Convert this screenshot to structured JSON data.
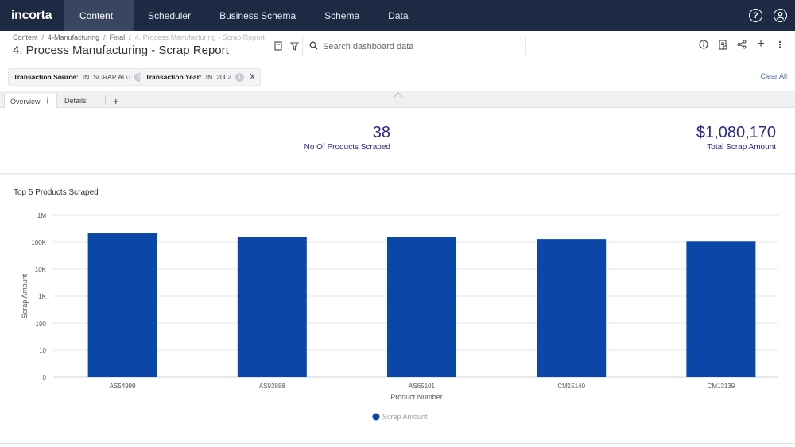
{
  "nav": {
    "logo": "incorta",
    "tabs": [
      "Content",
      "Scheduler",
      "Business Schema",
      "Schema",
      "Data"
    ],
    "active_tab": "Content"
  },
  "breadcrumb": [
    "Content",
    "4-Manufacturing",
    "Final",
    "4. Process Manufacturing - Scrap Report"
  ],
  "page_title": "4. Process Manufacturing - Scrap Report",
  "search": {
    "placeholder": "Search dashboard data"
  },
  "filters": [
    {
      "name": "Transaction Source:",
      "op": "IN",
      "value": "SCRAP ADJ",
      "badge": "i",
      "remove": "X"
    },
    {
      "name": "Transaction Year:",
      "op": "IN",
      "value": "2002",
      "badge": "i",
      "remove": "X"
    }
  ],
  "clear_all": "Clear All",
  "dashboard_tabs": [
    "Overview",
    "Details"
  ],
  "add_tab": "+",
  "kpis": [
    {
      "value": "38",
      "label": "No Of Products Scraped"
    },
    {
      "value": "$1,080,170",
      "label": "Total Scrap Amount"
    }
  ],
  "colors": {
    "nav_bg": "#1e2a44",
    "bar": "#0a47a8",
    "kpi_text": "#2a2a8a"
  },
  "chart_data": {
    "type": "bar",
    "title": "Top 5 Products Scraped",
    "xlabel": "Product Number",
    "ylabel": "Scrap Amount",
    "yscale": "log",
    "ylim": [
      0,
      1000000
    ],
    "ytick_labels": [
      "0",
      "10",
      "100",
      "1K",
      "10K",
      "100K",
      "1M"
    ],
    "categories": [
      "AS54999",
      "AS92888",
      "AS65101",
      "CM15140",
      "CM13139"
    ],
    "series": [
      {
        "name": "Scrap Amount",
        "values": [
          210000,
          160000,
          150000,
          130000,
          105000
        ]
      }
    ],
    "legend": "bottom-center",
    "grid": true
  }
}
